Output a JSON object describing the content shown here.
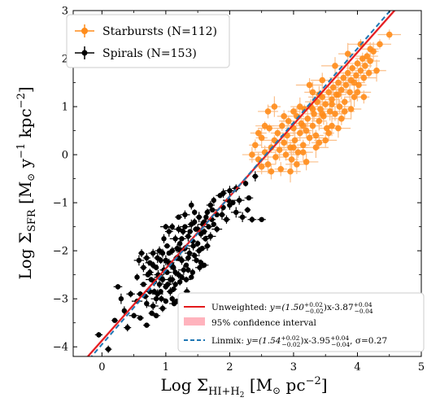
{
  "chart_data": {
    "type": "scatter",
    "xlabel": "Log Σ",
    "xlabel_sub": "HI+H",
    "xlabel_sub2": "2",
    "xlabel_unit": " [M",
    "xlabel_unit_sun": "⊙",
    "xlabel_unit_tail": " pc",
    "xlabel_unit_exp": "−2",
    "xlabel_close": "]",
    "ylabel": "Log Σ",
    "ylabel_sub": "SFR",
    "ylabel_unit": " [M",
    "ylabel_unit_sun": "⊙",
    "ylabel_unit_y": " y",
    "ylabel_unit_yexp": "−1",
    "ylabel_unit_kpc": " kpc",
    "ylabel_unit_kpcexp": "−2",
    "ylabel_close": "]",
    "xlim": [
      -0.45,
      5.0
    ],
    "ylim": [
      -4.2,
      3.0
    ],
    "xticks": [
      0,
      1,
      2,
      3,
      4,
      5
    ],
    "yticks": [
      -4,
      -3,
      -2,
      -1,
      0,
      1,
      2,
      3
    ],
    "xtick_labels": [
      "0",
      "1",
      "2",
      "3",
      "4",
      "5"
    ],
    "ytick_labels": [
      "−4",
      "−3",
      "−2",
      "−1",
      "0",
      "1",
      "2",
      "3"
    ],
    "grid": false,
    "legend_top": {
      "placement": "top-left",
      "entries": [
        {
          "label": "Starbursts (N=112)",
          "color": "#ff8c1a"
        },
        {
          "label": "Spirals (N=153)",
          "color": "#000000"
        }
      ]
    },
    "legend_bottom": {
      "placement": "bottom-right",
      "entries": [
        {
          "kind": "line",
          "color": "#e31a1c",
          "label_prefix": "Unweighted: ",
          "label_math": "y=(1.50",
          "label_sup": "+0.02",
          "label_sub": "−0.02",
          "label_mid": ")x-3.87",
          "label_sup2": "+0.04",
          "label_sub2": "−0.04"
        },
        {
          "kind": "band",
          "color": "#ffb3bd",
          "label": "95% confidence interval"
        },
        {
          "kind": "dashed",
          "color": "#1f77b4",
          "label_prefix": "Linmix: ",
          "label_math": "y=(1.54",
          "label_sup": "+0.02",
          "label_sub": "−0.02",
          "label_mid": ")x-3.95",
          "label_sup2": "+0.04",
          "label_sub2": "−0.04",
          "label_tail": ", σ=0.27"
        }
      ]
    },
    "fits": [
      {
        "name": "Unweighted",
        "slope": 1.5,
        "intercept": -3.87,
        "color": "#e31a1c",
        "style": "solid",
        "band": 0.04
      },
      {
        "name": "Linmix",
        "slope": 1.54,
        "intercept": -3.95,
        "color": "#1f77b4",
        "style": "dashed"
      }
    ],
    "series": [
      {
        "name": "Starbursts (N=112)",
        "color": "#ff8c1a",
        "errcolor": "#fbbf8a",
        "points": [
          [
            2.35,
            0.0
          ],
          [
            2.4,
            0.2
          ],
          [
            2.45,
            -0.1
          ],
          [
            2.5,
            0.35
          ],
          [
            2.55,
            0.05
          ],
          [
            2.6,
            -0.2
          ],
          [
            2.62,
            0.55
          ],
          [
            2.65,
            0.15
          ],
          [
            2.7,
            0.3
          ],
          [
            2.72,
            -0.05
          ],
          [
            2.75,
            0.45
          ],
          [
            2.78,
            0.1
          ],
          [
            2.8,
            -0.3
          ],
          [
            2.82,
            0.6
          ],
          [
            2.85,
            0.25
          ],
          [
            2.88,
            0.0
          ],
          [
            2.9,
            0.4
          ],
          [
            2.92,
            0.7
          ],
          [
            2.95,
            0.15
          ],
          [
            2.97,
            -0.1
          ],
          [
            3.0,
            0.55
          ],
          [
            3.02,
            0.3
          ],
          [
            3.05,
            0.8
          ],
          [
            3.07,
            0.05
          ],
          [
            3.1,
            0.45
          ],
          [
            3.12,
            0.65
          ],
          [
            3.15,
            0.2
          ],
          [
            3.17,
            0.95
          ],
          [
            3.2,
            0.5
          ],
          [
            3.22,
            0.75
          ],
          [
            3.25,
            0.35
          ],
          [
            3.27,
            1.0
          ],
          [
            3.3,
            0.6
          ],
          [
            3.32,
            0.85
          ],
          [
            3.35,
            0.4
          ],
          [
            3.37,
            1.1
          ],
          [
            3.4,
            0.7
          ],
          [
            3.42,
            0.95
          ],
          [
            3.45,
            1.2
          ],
          [
            3.47,
            0.8
          ],
          [
            3.5,
            1.05
          ],
          [
            3.52,
            0.55
          ],
          [
            3.55,
            1.3
          ],
          [
            3.57,
            0.9
          ],
          [
            3.6,
            1.15
          ],
          [
            3.62,
            1.4
          ],
          [
            3.65,
            0.85
          ],
          [
            3.67,
            1.25
          ],
          [
            3.7,
            1.5
          ],
          [
            3.72,
            1.0
          ],
          [
            3.75,
            1.35
          ],
          [
            3.78,
            1.6
          ],
          [
            3.8,
            1.1
          ],
          [
            3.82,
            1.45
          ],
          [
            3.85,
            1.7
          ],
          [
            3.88,
            1.3
          ],
          [
            3.9,
            1.55
          ],
          [
            3.92,
            1.8
          ],
          [
            3.95,
            1.2
          ],
          [
            3.98,
            1.65
          ],
          [
            4.0,
            1.9
          ],
          [
            4.02,
            1.45
          ],
          [
            4.05,
            1.75
          ],
          [
            4.08,
            2.0
          ],
          [
            4.1,
            1.6
          ],
          [
            4.12,
            1.85
          ],
          [
            4.15,
            2.05
          ],
          [
            4.18,
            1.7
          ],
          [
            4.2,
            1.95
          ],
          [
            4.25,
            2.15
          ],
          [
            3.1,
            1.0
          ],
          [
            3.3,
            1.3
          ],
          [
            3.2,
            -0.15
          ],
          [
            3.4,
            0.25
          ],
          [
            3.6,
            0.6
          ],
          [
            3.0,
            0.9
          ],
          [
            2.85,
            0.8
          ],
          [
            3.55,
            0.45
          ],
          [
            3.75,
            0.75
          ],
          [
            3.9,
            0.95
          ],
          [
            2.6,
            0.9
          ],
          [
            2.7,
            1.0
          ],
          [
            3.45,
            1.55
          ],
          [
            3.65,
            1.85
          ],
          [
            3.85,
            2.1
          ],
          [
            3.25,
            1.45
          ],
          [
            3.15,
            0.05
          ],
          [
            3.35,
            0.15
          ],
          [
            2.95,
            -0.35
          ],
          [
            3.05,
            -0.2
          ],
          [
            2.55,
            0.6
          ],
          [
            2.65,
            -0.35
          ],
          [
            3.5,
            0.3
          ],
          [
            3.7,
            0.55
          ],
          [
            3.8,
            0.9
          ],
          [
            4.0,
            1.3
          ],
          [
            4.1,
            1.2
          ],
          [
            4.3,
            1.75
          ],
          [
            4.35,
            2.3
          ],
          [
            4.5,
            2.5
          ],
          [
            2.5,
            -0.25
          ],
          [
            2.45,
            0.45
          ],
          [
            3.0,
            0.15
          ],
          [
            3.3,
            0.95
          ],
          [
            3.4,
            1.25
          ],
          [
            3.6,
            1.05
          ],
          [
            3.7,
            1.25
          ],
          [
            3.95,
            1.5
          ],
          [
            4.05,
            2.3
          ],
          [
            4.2,
            2.2
          ],
          [
            3.15,
            0.6
          ],
          [
            3.45,
            0.85
          ]
        ]
      },
      {
        "name": "Spirals (N=153)",
        "color": "#000000",
        "errcolor": "#000000",
        "points": [
          [
            -0.05,
            -3.75
          ],
          [
            0.1,
            -4.05
          ],
          [
            0.2,
            -3.45
          ],
          [
            0.35,
            -3.25
          ],
          [
            0.4,
            -3.6
          ],
          [
            0.55,
            -3.05
          ],
          [
            0.6,
            -3.4
          ],
          [
            0.65,
            -2.7
          ],
          [
            0.7,
            -3.1
          ],
          [
            0.72,
            -2.5
          ],
          [
            0.75,
            -2.85
          ],
          [
            0.78,
            -3.3
          ],
          [
            0.8,
            -2.3
          ],
          [
            0.82,
            -2.65
          ],
          [
            0.85,
            -3.0
          ],
          [
            0.87,
            -2.15
          ],
          [
            0.9,
            -2.55
          ],
          [
            0.92,
            -2.85
          ],
          [
            0.95,
            -2.05
          ],
          [
            0.97,
            -2.4
          ],
          [
            1.0,
            -2.75
          ],
          [
            1.02,
            -1.9
          ],
          [
            1.05,
            -2.25
          ],
          [
            1.07,
            -2.6
          ],
          [
            1.1,
            -2.0
          ],
          [
            1.12,
            -2.35
          ],
          [
            1.15,
            -1.75
          ],
          [
            1.17,
            -2.15
          ],
          [
            1.2,
            -2.5
          ],
          [
            1.22,
            -1.85
          ],
          [
            1.25,
            -2.2
          ],
          [
            1.27,
            -1.6
          ],
          [
            1.3,
            -1.95
          ],
          [
            1.32,
            -2.3
          ],
          [
            1.35,
            -1.7
          ],
          [
            1.37,
            -2.05
          ],
          [
            1.4,
            -1.45
          ],
          [
            1.42,
            -1.8
          ],
          [
            1.45,
            -2.1
          ],
          [
            1.47,
            -1.55
          ],
          [
            1.5,
            -1.85
          ],
          [
            1.52,
            -1.3
          ],
          [
            1.55,
            -1.65
          ],
          [
            1.57,
            -1.95
          ],
          [
            1.6,
            -1.4
          ],
          [
            1.62,
            -1.75
          ],
          [
            1.65,
            -1.2
          ],
          [
            1.67,
            -1.5
          ],
          [
            1.7,
            -1.05
          ],
          [
            1.72,
            -1.35
          ],
          [
            1.75,
            -0.95
          ],
          [
            1.8,
            -1.25
          ],
          [
            1.85,
            -0.85
          ],
          [
            1.9,
            -1.1
          ],
          [
            1.95,
            -1.35
          ],
          [
            2.0,
            -0.75
          ],
          [
            2.05,
            -1.0
          ],
          [
            2.1,
            -1.2
          ],
          [
            2.15,
            -0.95
          ],
          [
            2.2,
            -1.3
          ],
          [
            2.25,
            -0.6
          ],
          [
            2.3,
            -0.9
          ],
          [
            2.35,
            -1.35
          ],
          [
            2.4,
            -0.45
          ],
          [
            2.5,
            -1.35
          ],
          [
            0.9,
            -2.0
          ],
          [
            1.0,
            -3.05
          ],
          [
            1.1,
            -3.0
          ],
          [
            0.85,
            -2.35
          ],
          [
            0.95,
            -3.2
          ],
          [
            1.05,
            -1.6
          ],
          [
            1.15,
            -2.7
          ],
          [
            1.25,
            -2.55
          ],
          [
            1.35,
            -2.4
          ],
          [
            1.45,
            -1.2
          ],
          [
            1.55,
            -2.25
          ],
          [
            1.65,
            -1.9
          ],
          [
            0.75,
            -2.45
          ],
          [
            0.8,
            -3.15
          ],
          [
            0.65,
            -2.35
          ],
          [
            0.6,
            -2.9
          ],
          [
            0.5,
            -3.35
          ],
          [
            0.45,
            -2.9
          ],
          [
            0.7,
            -2.15
          ],
          [
            1.1,
            -1.5
          ],
          [
            1.2,
            -1.3
          ],
          [
            1.3,
            -1.25
          ],
          [
            1.4,
            -1.05
          ],
          [
            0.92,
            -2.2
          ],
          [
            1.02,
            -2.45
          ],
          [
            1.12,
            -2.8
          ],
          [
            1.22,
            -2.65
          ],
          [
            1.32,
            -2.6
          ],
          [
            1.42,
            -2.45
          ],
          [
            1.52,
            -2.0
          ],
          [
            0.97,
            -1.75
          ],
          [
            1.07,
            -2.85
          ],
          [
            1.17,
            -3.05
          ],
          [
            0.87,
            -2.9
          ],
          [
            0.77,
            -2.6
          ],
          [
            1.6,
            -1.6
          ],
          [
            1.7,
            -1.7
          ],
          [
            1.8,
            -1.55
          ],
          [
            1.9,
            -0.8
          ],
          [
            2.0,
            -1.05
          ],
          [
            2.1,
            -0.7
          ],
          [
            0.62,
            -2.05
          ],
          [
            0.55,
            -2.55
          ],
          [
            0.7,
            -3.55
          ],
          [
            0.85,
            -3.35
          ],
          [
            0.3,
            -3.0
          ],
          [
            0.25,
            -2.75
          ],
          [
            1.0,
            -2.2
          ],
          [
            1.1,
            -2.6
          ],
          [
            1.2,
            -2.15
          ],
          [
            1.3,
            -1.5
          ],
          [
            1.4,
            -2.55
          ],
          [
            1.5,
            -1.55
          ],
          [
            1.6,
            -2.3
          ],
          [
            1.75,
            -1.45
          ],
          [
            0.95,
            -2.6
          ],
          [
            1.05,
            -2.05
          ],
          [
            1.15,
            -2.45
          ],
          [
            1.25,
            -1.75
          ],
          [
            1.35,
            -2.15
          ],
          [
            1.45,
            -1.4
          ],
          [
            0.9,
            -2.7
          ],
          [
            0.8,
            -2.05
          ],
          [
            1.0,
            -1.5
          ],
          [
            1.2,
            -1.55
          ],
          [
            0.75,
            -2.25
          ],
          [
            0.82,
            -2.85
          ],
          [
            1.08,
            -2.3
          ],
          [
            1.18,
            -1.95
          ],
          [
            1.28,
            -2.4
          ],
          [
            1.38,
            -1.6
          ],
          [
            1.48,
            -2.2
          ],
          [
            1.58,
            -1.45
          ],
          [
            0.68,
            -2.95
          ],
          [
            1.88,
            -1.25
          ],
          [
            1.98,
            -0.95
          ],
          [
            2.28,
            -1.15
          ],
          [
            0.58,
            -2.2
          ],
          [
            1.13,
            -3.1
          ],
          [
            1.33,
            -2.85
          ],
          [
            0.88,
            -2.5
          ],
          [
            1.03,
            -2.7
          ],
          [
            1.23,
            -2.0
          ],
          [
            1.43,
            -1.9
          ],
          [
            1.53,
            -2.35
          ],
          [
            1.63,
            -1.3
          ],
          [
            1.73,
            -1.15
          ],
          [
            0.93,
            -3.0
          ]
        ]
      }
    ]
  }
}
